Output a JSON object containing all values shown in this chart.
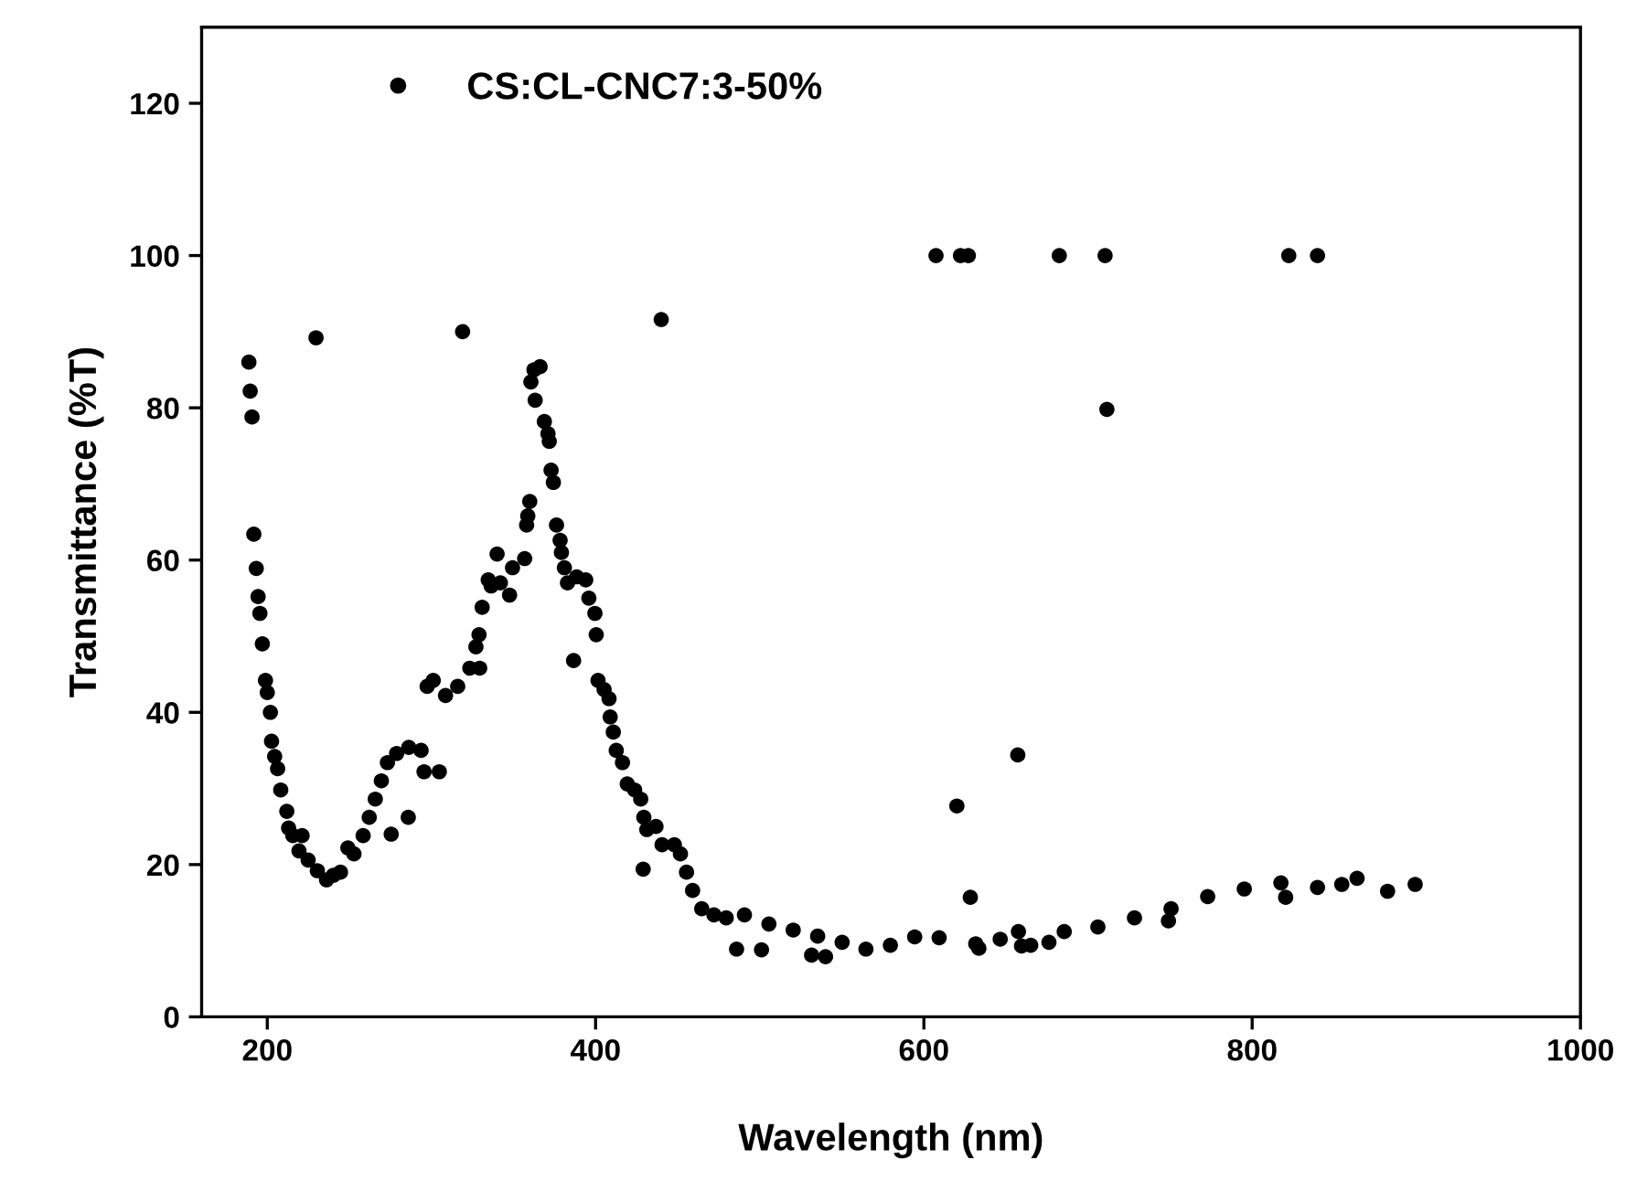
{
  "chart_data": {
    "type": "scatter",
    "xlabel": "Wavelength (nm)",
    "ylabel": "Transmittance (%T)",
    "xlim": [
      160,
      1000
    ],
    "xticks": [
      200,
      400,
      600,
      800,
      1000
    ],
    "ylim": [
      0,
      130
    ],
    "yticks": [
      0,
      20,
      40,
      60,
      80,
      100,
      120
    ],
    "grid": false,
    "legend": "top left",
    "marker": "circle",
    "series": [
      {
        "name": "CS:CL-CNC7:3-50%",
        "color": "#000000",
        "x": [
          188.8,
          189.6,
          190.7,
          191.8,
          193.3,
          194.4,
          195.5,
          197,
          198.9,
          200,
          201.9,
          202.6,
          204.5,
          206.3,
          208.2,
          211.9,
          213,
          215.6,
          219.3,
          221.2,
          224.9,
          229.7,
          230.5,
          236.1,
          240.3,
          244.6,
          249.1,
          252.8,
          258.4,
          262.1,
          265.8,
          269.5,
          273.2,
          275.5,
          278.8,
          285.9,
          286.2,
          293.7,
          295.5,
          297.4,
          301.1,
          304.8,
          308.6,
          316,
          319,
          323.4,
          327.1,
          329,
          329.4,
          330.9,
          334.6,
          336.4,
          340,
          342,
          347.6,
          349.4,
          356.8,
          358,
          358.7,
          359.9,
          360.6,
          362.5,
          363.2,
          366.2,
          368.8,
          371,
          371.8,
          372.9,
          374.3,
          376.2,
          378.4,
          379.2,
          381,
          382.9,
          386.6,
          388.5,
          394,
          395.9,
          399.6,
          400.4,
          401.5,
          405.2,
          408.2,
          408.9,
          410.8,
          412.6,
          416.4,
          419.3,
          423.8,
          427.5,
          429,
          429.4,
          431.2,
          436.8,
          440,
          440.5,
          448,
          451.7,
          455.4,
          459.1,
          464.7,
          472.1,
          479.6,
          485.9,
          490.7,
          501.1,
          505.6,
          520.4,
          531.6,
          535.3,
          540.1,
          550.2,
          564.7,
          579.6,
          594.4,
          607.4,
          609.3,
          620.1,
          622.3,
          627.1,
          628.3,
          631.6,
          633.5,
          646.5,
          657.2,
          657.6,
          659.5,
          665.1,
          676.2,
          682.5,
          685.5,
          706,
          710.4,
          711.5,
          728.3,
          749,
          750.6,
          772.9,
          795.2,
          817.5,
          820.4,
          822.3,
          839.8,
          839.8,
          854.6,
          863.9,
          882.5,
          899.3
        ],
        "values": [
          86.0,
          82.2,
          78.8,
          63.4,
          58.9,
          55.2,
          53,
          49,
          44.2,
          42.6,
          40,
          36.2,
          34.2,
          32.6,
          29.8,
          27,
          24.8,
          23.8,
          21.8,
          23.8,
          20.6,
          89.2,
          19.2,
          18,
          18.6,
          19,
          22.2,
          21.4,
          23.8,
          26.2,
          28.6,
          31,
          33.4,
          24,
          34.6,
          26.2,
          35.4,
          35,
          32.2,
          43.4,
          44.2,
          32.2,
          42.2,
          43.4,
          90,
          45.8,
          48.6,
          50.2,
          45.8,
          53.8,
          57.4,
          56.6,
          60.8,
          57,
          55.4,
          59,
          60.2,
          64.6,
          65.8,
          67.7,
          83.4,
          85,
          81,
          85.4,
          78.2,
          76.6,
          75.6,
          71.8,
          70.2,
          64.6,
          62.6,
          61,
          59,
          57,
          46.8,
          57.8,
          57.4,
          55,
          53,
          50.2,
          44.2,
          43,
          41.8,
          39.4,
          37.4,
          35,
          33.4,
          30.6,
          29.8,
          28.6,
          19.4,
          26.2,
          24.6,
          25,
          91.6,
          22.6,
          22.6,
          21.4,
          19,
          16.6,
          14.2,
          13.4,
          13,
          8.9,
          13.4,
          8.8,
          12.2,
          11.4,
          8.1,
          10.6,
          7.9,
          9.8,
          8.9,
          9.4,
          10.5,
          100,
          10.4,
          27.7,
          100,
          100,
          15.7,
          9.6,
          9,
          10.2,
          34.4,
          11.2,
          9.3,
          9.4,
          9.8,
          100,
          11.2,
          11.8,
          100,
          79.8,
          13,
          12.6,
          14.2,
          15.8,
          16.8,
          17.6,
          15.7,
          100,
          100,
          17,
          17.4,
          18.2,
          16.5,
          17.4
        ]
      }
    ]
  }
}
